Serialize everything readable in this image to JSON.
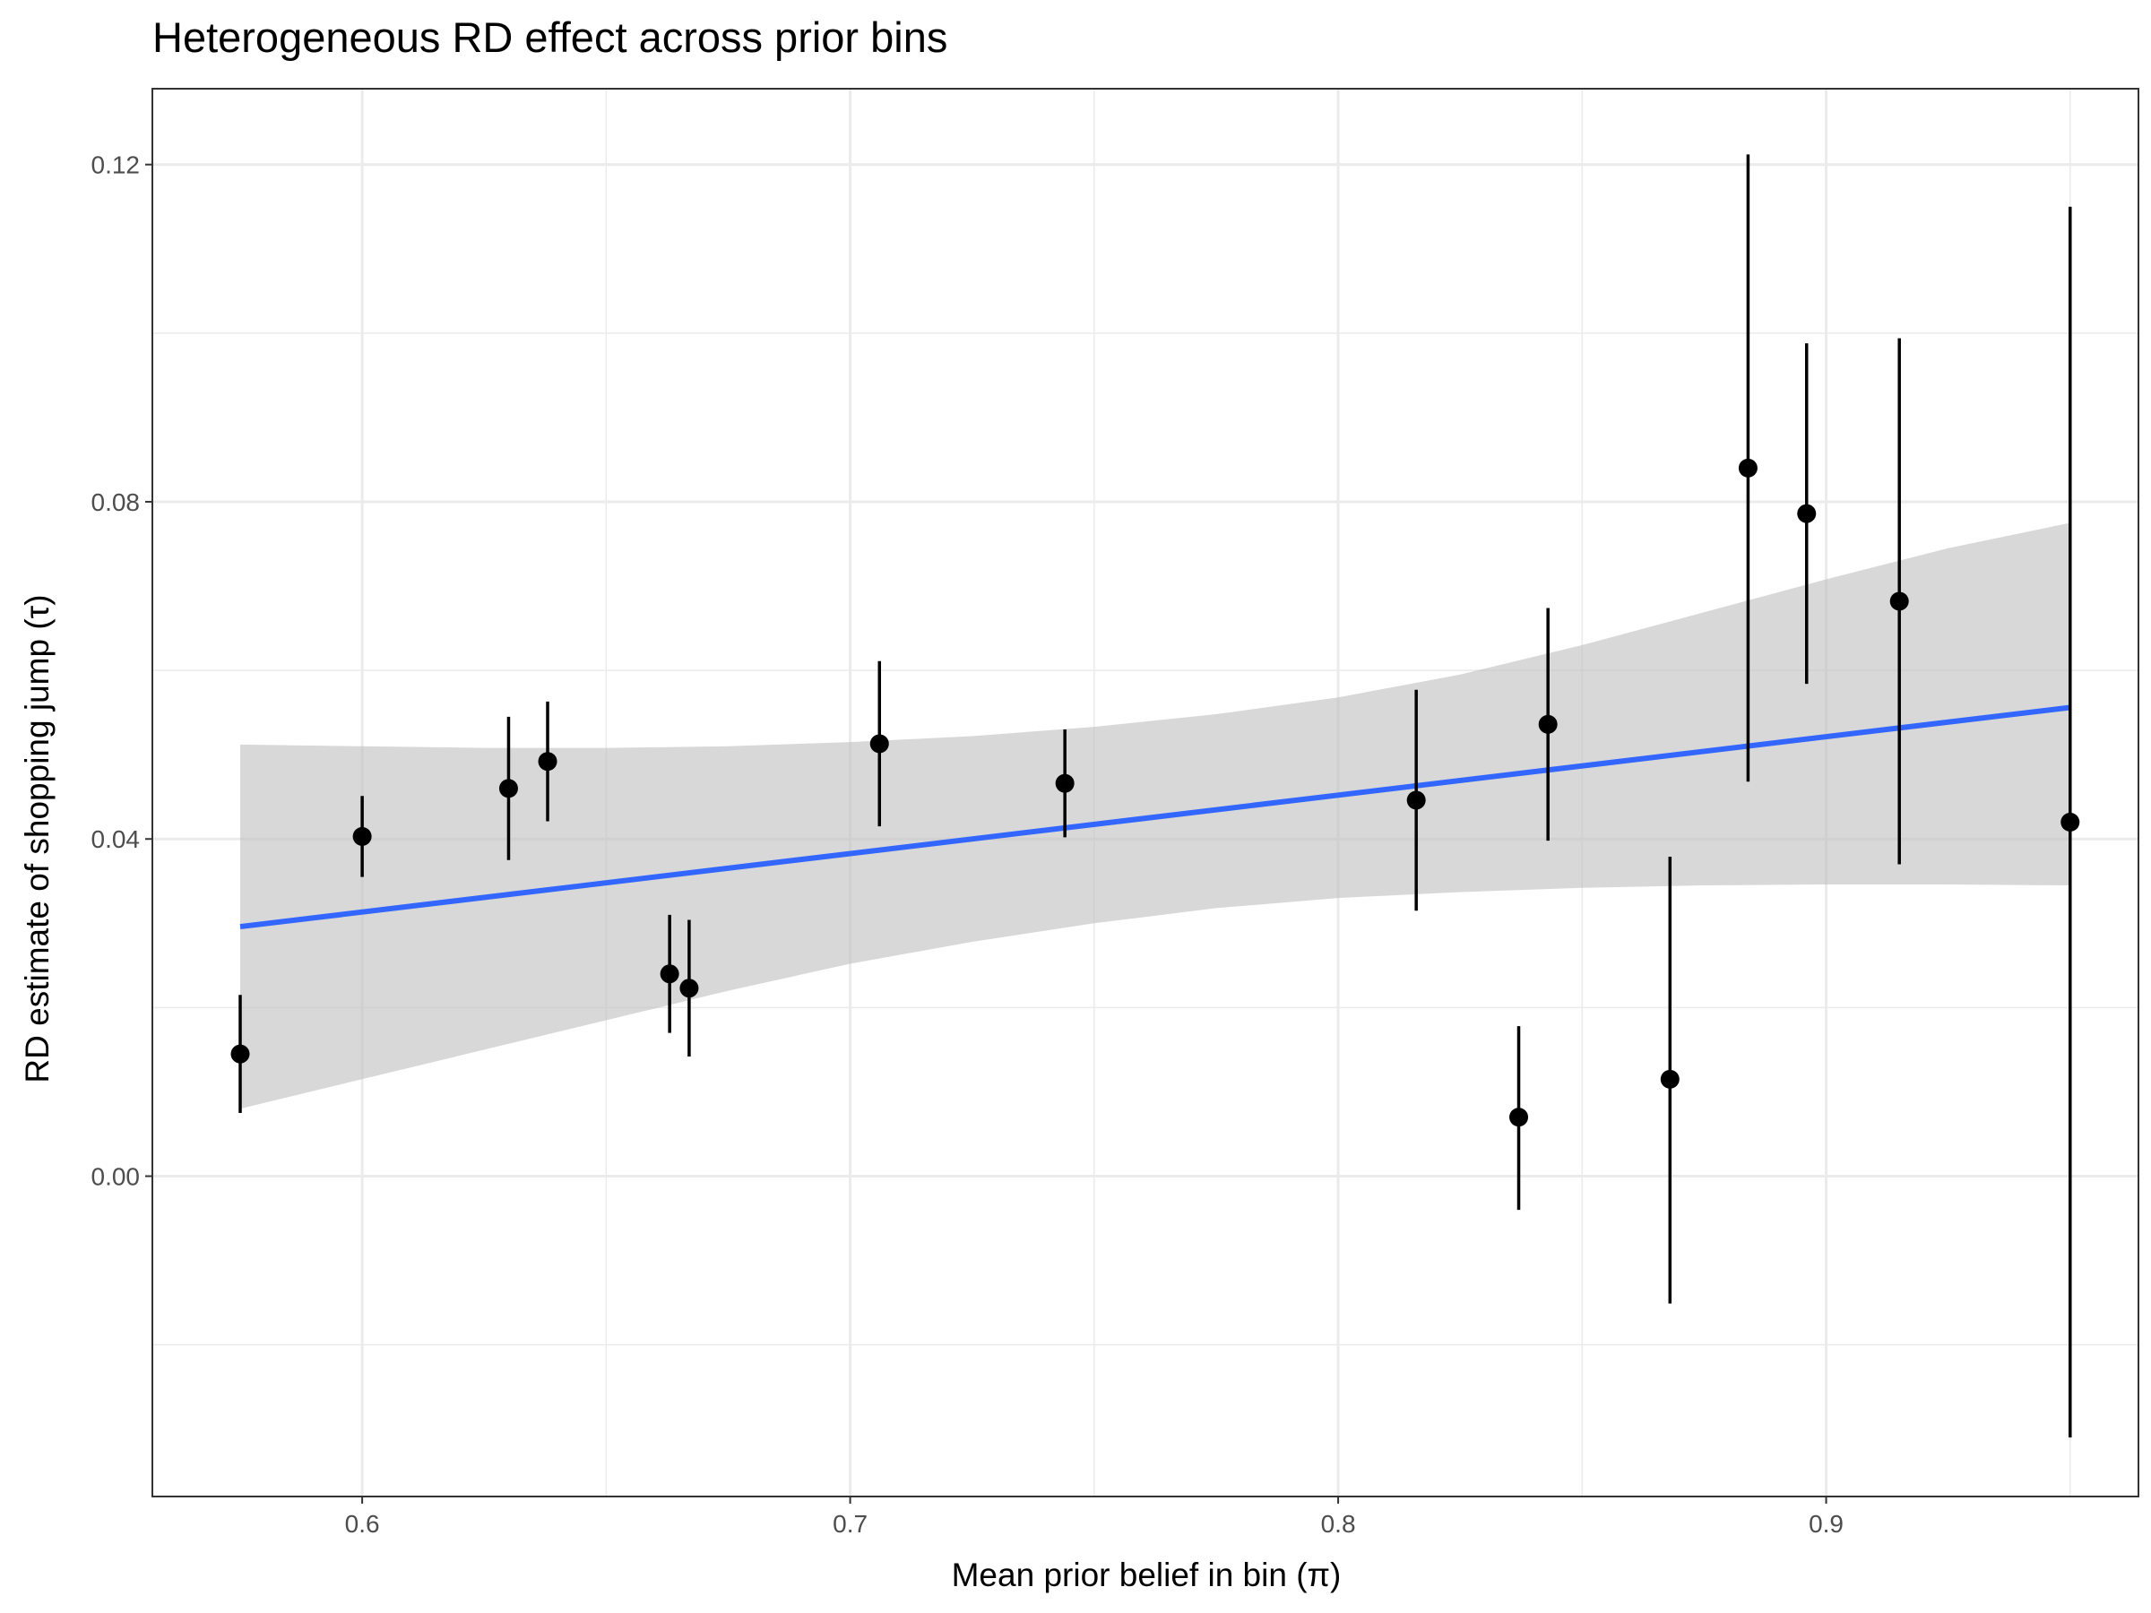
{
  "chart_data": {
    "type": "scatter",
    "title": "Heterogeneous RD effect across prior bins",
    "xlabel": "Mean prior belief in bin (π)",
    "ylabel": "RD estimate of shopping jump (τ)",
    "xlim": [
      0.557,
      0.964
    ],
    "ylim": [
      -0.038,
      0.129
    ],
    "x_ticks": [
      0.6,
      0.7,
      0.8,
      0.9
    ],
    "x_tick_labels": [
      "0.6",
      "0.7",
      "0.8",
      "0.9"
    ],
    "y_ticks": [
      0.0,
      0.04,
      0.08,
      0.12
    ],
    "y_tick_labels": [
      "0.00",
      "0.04",
      "0.08",
      "0.12"
    ],
    "grid": true,
    "legend": "none",
    "colors": {
      "points": "#000000",
      "fit_line": "#3366ff",
      "ribbon": "#bebebe",
      "panel_border": "#333333",
      "grid": "#ebebeb"
    },
    "series": [
      {
        "type": "pointrange",
        "points": [
          {
            "x": 0.575,
            "y": 0.0145,
            "lo": 0.0075,
            "hi": 0.0215
          },
          {
            "x": 0.6,
            "y": 0.0403,
            "lo": 0.0355,
            "hi": 0.0451
          },
          {
            "x": 0.63,
            "y": 0.046,
            "lo": 0.0375,
            "hi": 0.0545
          },
          {
            "x": 0.638,
            "y": 0.0492,
            "lo": 0.0421,
            "hi": 0.0563
          },
          {
            "x": 0.663,
            "y": 0.024,
            "lo": 0.017,
            "hi": 0.031
          },
          {
            "x": 0.667,
            "y": 0.0223,
            "lo": 0.0142,
            "hi": 0.0304
          },
          {
            "x": 0.706,
            "y": 0.0513,
            "lo": 0.0415,
            "hi": 0.0611
          },
          {
            "x": 0.744,
            "y": 0.0466,
            "lo": 0.0402,
            "hi": 0.053
          },
          {
            "x": 0.816,
            "y": 0.0446,
            "lo": 0.0315,
            "hi": 0.0577
          },
          {
            "x": 0.837,
            "y": 0.007,
            "lo": -0.004,
            "hi": 0.0178
          },
          {
            "x": 0.843,
            "y": 0.0536,
            "lo": 0.0398,
            "hi": 0.0674
          },
          {
            "x": 0.868,
            "y": 0.0115,
            "lo": -0.0151,
            "hi": 0.0379
          },
          {
            "x": 0.884,
            "y": 0.084,
            "lo": 0.0468,
            "hi": 0.1212
          },
          {
            "x": 0.896,
            "y": 0.0786,
            "lo": 0.0584,
            "hi": 0.0988
          },
          {
            "x": 0.915,
            "y": 0.0682,
            "lo": 0.037,
            "hi": 0.0994
          },
          {
            "x": 0.95,
            "y": 0.042,
            "lo": -0.031,
            "hi": 0.115
          }
        ]
      },
      {
        "type": "smooth",
        "method": "lm",
        "x": [
          0.575,
          0.95
        ],
        "y": [
          0.0296,
          0.0556
        ]
      },
      {
        "type": "ribbon",
        "x": [
          0.575,
          0.6,
          0.625,
          0.65,
          0.675,
          0.7,
          0.725,
          0.75,
          0.775,
          0.8,
          0.825,
          0.85,
          0.875,
          0.9,
          0.925,
          0.95
        ],
        "lo": [
          0.008,
          0.0115,
          0.015,
          0.0185,
          0.022,
          0.0252,
          0.0278,
          0.03,
          0.0318,
          0.033,
          0.0337,
          0.0342,
          0.0345,
          0.0346,
          0.0346,
          0.0345
        ],
        "hi": [
          0.0512,
          0.051,
          0.0508,
          0.0508,
          0.051,
          0.0515,
          0.0522,
          0.0533,
          0.0548,
          0.0568,
          0.0595,
          0.063,
          0.0669,
          0.0708,
          0.0745,
          0.0775
        ]
      }
    ]
  }
}
